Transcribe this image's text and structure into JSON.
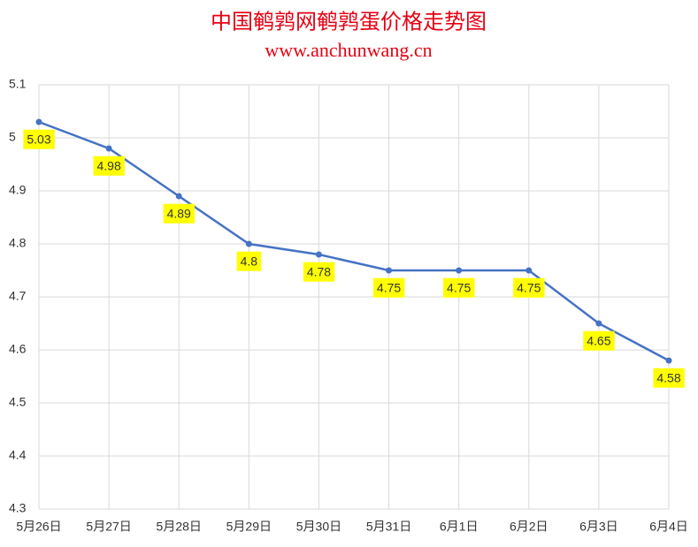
{
  "chart_data": {
    "type": "line",
    "title": "中国鹌鹑网鹌鹑蛋价格走势图",
    "subtitle": "www.anchunwang.cn",
    "categories": [
      "5月26日",
      "5月27日",
      "5月28日",
      "5月29日",
      "5月30日",
      "5月31日",
      "6月1日",
      "6月2日",
      "6月3日",
      "6月4日"
    ],
    "values": [
      5.03,
      4.98,
      4.89,
      4.8,
      4.78,
      4.75,
      4.75,
      4.75,
      4.65,
      4.58
    ],
    "color": "#4472c4",
    "label_color": "#ffff00",
    "ylim": [
      4.3,
      5.1
    ],
    "yticks": [
      4.3,
      4.4,
      4.5,
      4.6,
      4.7,
      4.8,
      4.9,
      5,
      5.1
    ],
    "grid": true
  }
}
